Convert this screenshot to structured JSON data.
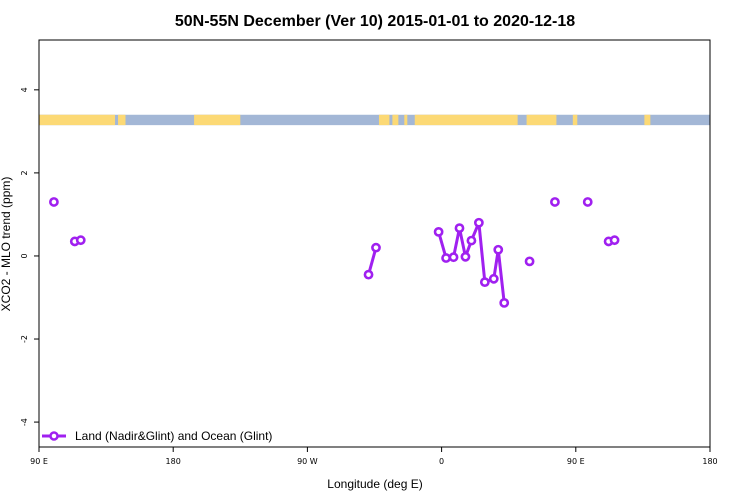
{
  "chart_data": {
    "type": "line",
    "title": "50N-55N December (Ver 10)   2015-01-01 to 2020-12-18",
    "xlabel": "Longitude (deg E)",
    "ylabel": "XCO2 - MLO trend (ppm)",
    "xlim": [
      90,
      540
    ],
    "ylim": [
      -4.6,
      5.2
    ],
    "x_ticks": [
      {
        "value": 90,
        "label": "90 E"
      },
      {
        "value": 180,
        "label": "180"
      },
      {
        "value": 270,
        "label": "90 W"
      },
      {
        "value": 360,
        "label": "0"
      },
      {
        "value": 450,
        "label": "90 E"
      },
      {
        "value": 540,
        "label": "180"
      }
    ],
    "y_ticks": [
      -4,
      -2,
      0,
      2,
      4
    ],
    "grid": false,
    "legend_position": "bottom-left",
    "land_ocean_strip": {
      "y_range": [
        3.15,
        3.4
      ],
      "land_color": "#fcd975",
      "ocean_color": "#a3b7d6",
      "land_segments": [
        [
          90,
          141
        ],
        [
          143,
          148
        ],
        [
          194,
          225
        ],
        [
          318,
          325
        ],
        [
          327,
          331
        ],
        [
          335,
          337
        ],
        [
          342,
          411
        ],
        [
          417,
          437
        ],
        [
          448,
          451
        ],
        [
          496,
          500
        ]
      ]
    },
    "series": [
      {
        "name": "Land (Nadir&Glint) and Ocean (Glint)",
        "color": "#a020f0",
        "segments": [
          [
            {
              "x": 100,
              "y": 1.3
            }
          ],
          [
            {
              "x": 114,
              "y": 0.35
            },
            {
              "x": 118,
              "y": 0.38
            }
          ],
          [
            {
              "x": 311,
              "y": -0.45
            },
            {
              "x": 316,
              "y": 0.2
            }
          ],
          [
            {
              "x": 358,
              "y": 0.58
            },
            {
              "x": 363,
              "y": -0.05
            },
            {
              "x": 368,
              "y": -0.03
            },
            {
              "x": 372,
              "y": 0.67
            },
            {
              "x": 376,
              "y": -0.02
            },
            {
              "x": 380,
              "y": 0.37
            },
            {
              "x": 385,
              "y": 0.8
            },
            {
              "x": 389,
              "y": -0.63
            },
            {
              "x": 395,
              "y": -0.55
            },
            {
              "x": 398,
              "y": 0.15
            },
            {
              "x": 402,
              "y": -1.13
            }
          ],
          [
            {
              "x": 419,
              "y": -0.13
            }
          ],
          [
            {
              "x": 436,
              "y": 1.3
            }
          ],
          [
            {
              "x": 458,
              "y": 1.3
            }
          ],
          [
            {
              "x": 472,
              "y": 0.35
            },
            {
              "x": 476,
              "y": 0.38
            }
          ]
        ]
      }
    ]
  }
}
